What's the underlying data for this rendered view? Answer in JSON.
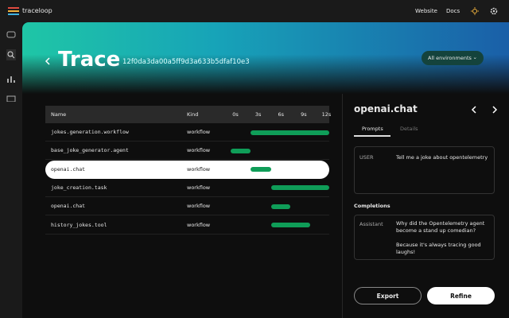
{
  "app": {
    "brand": "traceloop",
    "nav": [
      "Website",
      "Docs"
    ]
  },
  "header": {
    "title": "Trace",
    "trace_id": "12f0da3da00a5ff9d3a633b5dfaf10e3",
    "filter": "All environments"
  },
  "table": {
    "columns": [
      "Name",
      "Kind"
    ],
    "timeline": {
      "xlim": [
        0,
        13
      ],
      "ticks": [
        {
          "value": 0,
          "label": "0s"
        },
        {
          "value": 3,
          "label": "3s"
        },
        {
          "value": 6,
          "label": "6s"
        },
        {
          "value": 9,
          "label": "9s"
        },
        {
          "value": 12,
          "label": "12s"
        }
      ]
    },
    "rows": [
      {
        "name": "jokes.generation.workflow",
        "kind": "workflow",
        "start": 2.6,
        "end": 13
      },
      {
        "name": "base_joke_generator.agent",
        "kind": "workflow",
        "start": 0,
        "end": 2.6
      },
      {
        "name": "openai.chat",
        "kind": "workflow",
        "start": 2.6,
        "end": 5.3
      },
      {
        "name": "joke_creation.task",
        "kind": "workflow",
        "start": 5.3,
        "end": 13
      },
      {
        "name": "openai.chat",
        "kind": "workflow",
        "start": 5.3,
        "end": 7.9
      },
      {
        "name": "history_jokes.tool",
        "kind": "workflow",
        "start": 5.3,
        "end": 10.5
      }
    ]
  },
  "panel": {
    "title": "openai.chat",
    "tabs": [
      "Prompts",
      "Details"
    ],
    "prompt": {
      "role": "USER",
      "text": "Tell me a joke about opentelemetry"
    },
    "completions_title": "Completions",
    "completion": {
      "role": "Assistant",
      "paragraphs": [
        "Why did the Opentelemetry agent become a stand up comedian?",
        "Because it's always tracing good laughs!"
      ]
    },
    "buttons": [
      "Export",
      "Refine"
    ]
  }
}
